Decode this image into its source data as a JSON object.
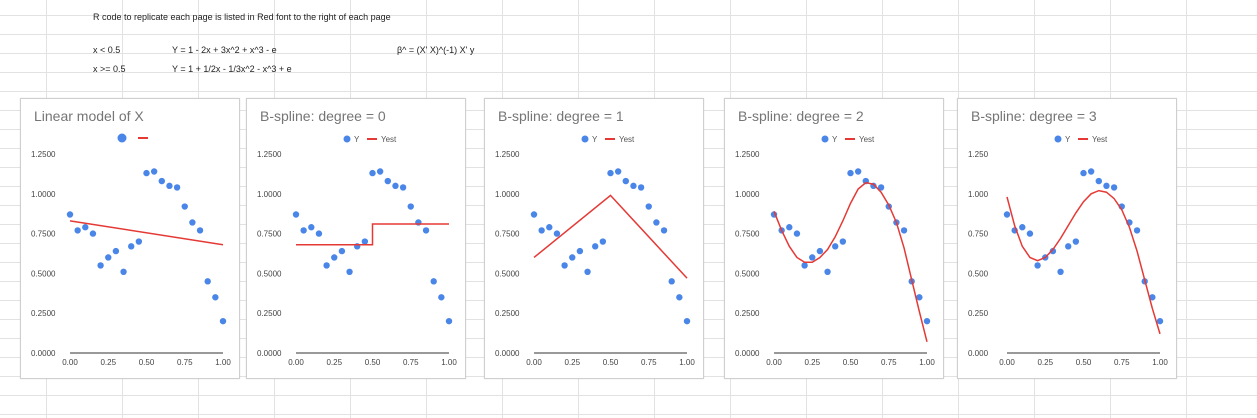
{
  "sheet": {
    "note": "R code to replicate each page is listed in Red font to the right of each page",
    "row1": {
      "a": "x < 0.5",
      "b": "Y = 1 - 2x + 3x^2 + x^3 - e",
      "c": "β^ = (X' X)^(-1) X' y"
    },
    "row2": {
      "a": "x >= 0.5",
      "b": "Y = 1 + 1/2x - 1/3x^2 - x^3 + e"
    }
  },
  "colors": {
    "points": "#4a86e8",
    "fit": "#e53935"
  },
  "points": {
    "x": [
      0.0,
      0.05,
      0.1,
      0.15,
      0.2,
      0.25,
      0.3,
      0.35,
      0.4,
      0.45,
      0.5,
      0.55,
      0.6,
      0.65,
      0.7,
      0.75,
      0.8,
      0.85,
      0.9,
      0.95,
      1.0
    ],
    "y": [
      0.87,
      0.77,
      0.79,
      0.75,
      0.55,
      0.6,
      0.64,
      0.51,
      0.67,
      0.7,
      1.13,
      1.14,
      1.08,
      1.05,
      1.04,
      0.92,
      0.82,
      0.77,
      0.45,
      0.35,
      0.2
    ]
  },
  "chart_data": [
    {
      "type": "scatter",
      "title": "Linear model of X",
      "legend": [],
      "ylim": [
        0,
        1.25
      ],
      "xlim": [
        0,
        1
      ],
      "yticks": [
        "0.0000",
        "0.2500",
        "0.5000",
        "0.7500",
        "1.0000",
        "1.2500"
      ],
      "xticks": [
        "0.00",
        "0.25",
        "0.50",
        "0.75",
        "1.00"
      ],
      "fit": {
        "x": [
          0,
          1
        ],
        "y": [
          0.83,
          0.68
        ]
      }
    },
    {
      "type": "scatter",
      "title": "B-spline: degree = 0",
      "legend": [
        "Y",
        "Yest"
      ],
      "ylim": [
        0,
        1.25
      ],
      "xlim": [
        0,
        1
      ],
      "yticks": [
        "0.0000",
        "0.2500",
        "0.5000",
        "0.7500",
        "1.0000",
        "1.2500"
      ],
      "xticks": [
        "0.00",
        "0.25",
        "0.50",
        "0.75",
        "1.00"
      ],
      "fit": {
        "x": [
          0,
          0.5,
          0.5,
          1.0
        ],
        "y": [
          0.68,
          0.68,
          0.81,
          0.81
        ]
      }
    },
    {
      "type": "scatter",
      "title": "B-spline: degree = 1",
      "legend": [
        "Y",
        "Yest"
      ],
      "ylim": [
        0,
        1.25
      ],
      "xlim": [
        0,
        1
      ],
      "yticks": [
        "0.0000",
        "0.2500",
        "0.5000",
        "0.7500",
        "1.0000",
        "1.2500"
      ],
      "xticks": [
        "0.00",
        "0.25",
        "0.50",
        "0.75",
        "1.00"
      ],
      "fit": {
        "x": [
          0,
          0.5,
          1.0
        ],
        "y": [
          0.6,
          0.99,
          0.47
        ]
      }
    },
    {
      "type": "scatter",
      "title": "B-spline: degree = 2",
      "legend": [
        "Y",
        "Yest"
      ],
      "ylim": [
        0,
        1.25
      ],
      "xlim": [
        0,
        1
      ],
      "yticks": [
        "0.0000",
        "0.2500",
        "0.5000",
        "0.7500",
        "1.0000",
        "1.2500"
      ],
      "xticks": [
        "0.00",
        "0.25",
        "0.50",
        "0.75",
        "1.00"
      ],
      "fit": {
        "x": [
          0,
          0.05,
          0.1,
          0.15,
          0.2,
          0.25,
          0.3,
          0.35,
          0.4,
          0.45,
          0.5,
          0.55,
          0.6,
          0.65,
          0.7,
          0.75,
          0.8,
          0.85,
          0.9,
          0.95,
          1.0
        ],
        "y": [
          0.89,
          0.77,
          0.67,
          0.6,
          0.57,
          0.57,
          0.6,
          0.65,
          0.73,
          0.83,
          0.94,
          1.03,
          1.07,
          1.06,
          1.01,
          0.93,
          0.82,
          0.66,
          0.46,
          0.26,
          0.07
        ]
      }
    },
    {
      "type": "scatter",
      "title": "B-spline: degree = 3",
      "legend": [
        "Y",
        "Yest"
      ],
      "ylim": [
        0,
        1.25
      ],
      "xlim": [
        0,
        1
      ],
      "yticks": [
        "0.000",
        "0.250",
        "0.500",
        "0.750",
        "1.000",
        "1.250"
      ],
      "xticks": [
        "0.00",
        "0.25",
        "0.50",
        "0.75",
        "1.00"
      ],
      "fit": {
        "x": [
          0,
          0.05,
          0.1,
          0.15,
          0.2,
          0.25,
          0.3,
          0.35,
          0.4,
          0.45,
          0.5,
          0.55,
          0.6,
          0.65,
          0.7,
          0.75,
          0.8,
          0.85,
          0.9,
          0.95,
          1.0
        ],
        "y": [
          0.98,
          0.8,
          0.67,
          0.6,
          0.58,
          0.6,
          0.65,
          0.72,
          0.8,
          0.88,
          0.95,
          1.0,
          1.02,
          1.01,
          0.97,
          0.9,
          0.79,
          0.64,
          0.46,
          0.28,
          0.12
        ]
      }
    }
  ]
}
